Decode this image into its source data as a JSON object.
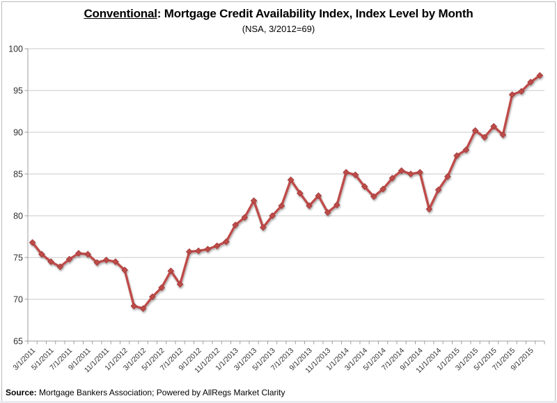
{
  "title": {
    "underlined": "Conventional",
    "rest": ": Mortgage Credit Availability Index, Index Level by Month",
    "subtitle": "(NSA, 3/2012=69)"
  },
  "source": {
    "label": "Source:",
    "text": " Mortgage Bankers Association; Powered by AllRegs Market Clarity"
  },
  "colors": {
    "series": "#be4b48",
    "marker_edge": "#9c3a38",
    "gridline": "#c8c8c8",
    "axis": "#9d9d9d",
    "tick_label": "#303030"
  },
  "chart_data": {
    "type": "line",
    "title": "Conventional: Mortgage Credit Availability Index, Index Level by Month",
    "subtitle": "(NSA, 3/2012=69)",
    "x": [
      "3/1/2011",
      "4/1/2011",
      "5/1/2011",
      "6/1/2011",
      "7/1/2011",
      "8/1/2011",
      "9/1/2011",
      "10/1/2011",
      "11/1/2011",
      "12/1/2011",
      "1/1/2012",
      "2/1/2012",
      "3/1/2012",
      "4/1/2012",
      "5/1/2012",
      "6/1/2012",
      "7/1/2012",
      "8/1/2012",
      "9/1/2012",
      "10/1/2012",
      "11/1/2012",
      "12/1/2012",
      "1/1/2013",
      "2/1/2013",
      "3/1/2013",
      "4/1/2013",
      "5/1/2013",
      "6/1/2013",
      "7/1/2013",
      "8/1/2013",
      "9/1/2013",
      "10/1/2013",
      "11/1/2013",
      "12/1/2013",
      "1/1/2014",
      "2/1/2014",
      "3/1/2014",
      "4/1/2014",
      "5/1/2014",
      "6/1/2014",
      "7/1/2014",
      "8/1/2014",
      "9/1/2014",
      "10/1/2014",
      "11/1/2014",
      "12/1/2014",
      "1/1/2015",
      "2/1/2015",
      "3/1/2015",
      "4/1/2015",
      "5/1/2015",
      "6/1/2015",
      "7/1/2015",
      "8/1/2015",
      "9/1/2015",
      "10/1/2015"
    ],
    "values": [
      76.8,
      75.4,
      74.5,
      73.9,
      74.8,
      75.5,
      75.4,
      74.4,
      74.7,
      74.5,
      73.5,
      69.2,
      68.9,
      70.3,
      71.4,
      73.4,
      71.8,
      75.7,
      75.8,
      76.0,
      76.4,
      76.9,
      78.9,
      79.8,
      81.8,
      78.6,
      80.0,
      81.2,
      84.3,
      82.7,
      81.2,
      82.4,
      80.4,
      81.3,
      85.2,
      84.9,
      83.5,
      82.3,
      83.2,
      84.5,
      85.4,
      85.0,
      85.2,
      80.8,
      83.1,
      84.7,
      87.2,
      87.9,
      90.2,
      89.4,
      90.7,
      89.7,
      94.5,
      94.9,
      96.0,
      96.8
    ],
    "ylim": [
      65,
      100
    ],
    "ytick_interval": 5,
    "xtick_label_interval": 2,
    "x_label_rotation": -45,
    "grid": "horizontal",
    "legend": "none"
  }
}
